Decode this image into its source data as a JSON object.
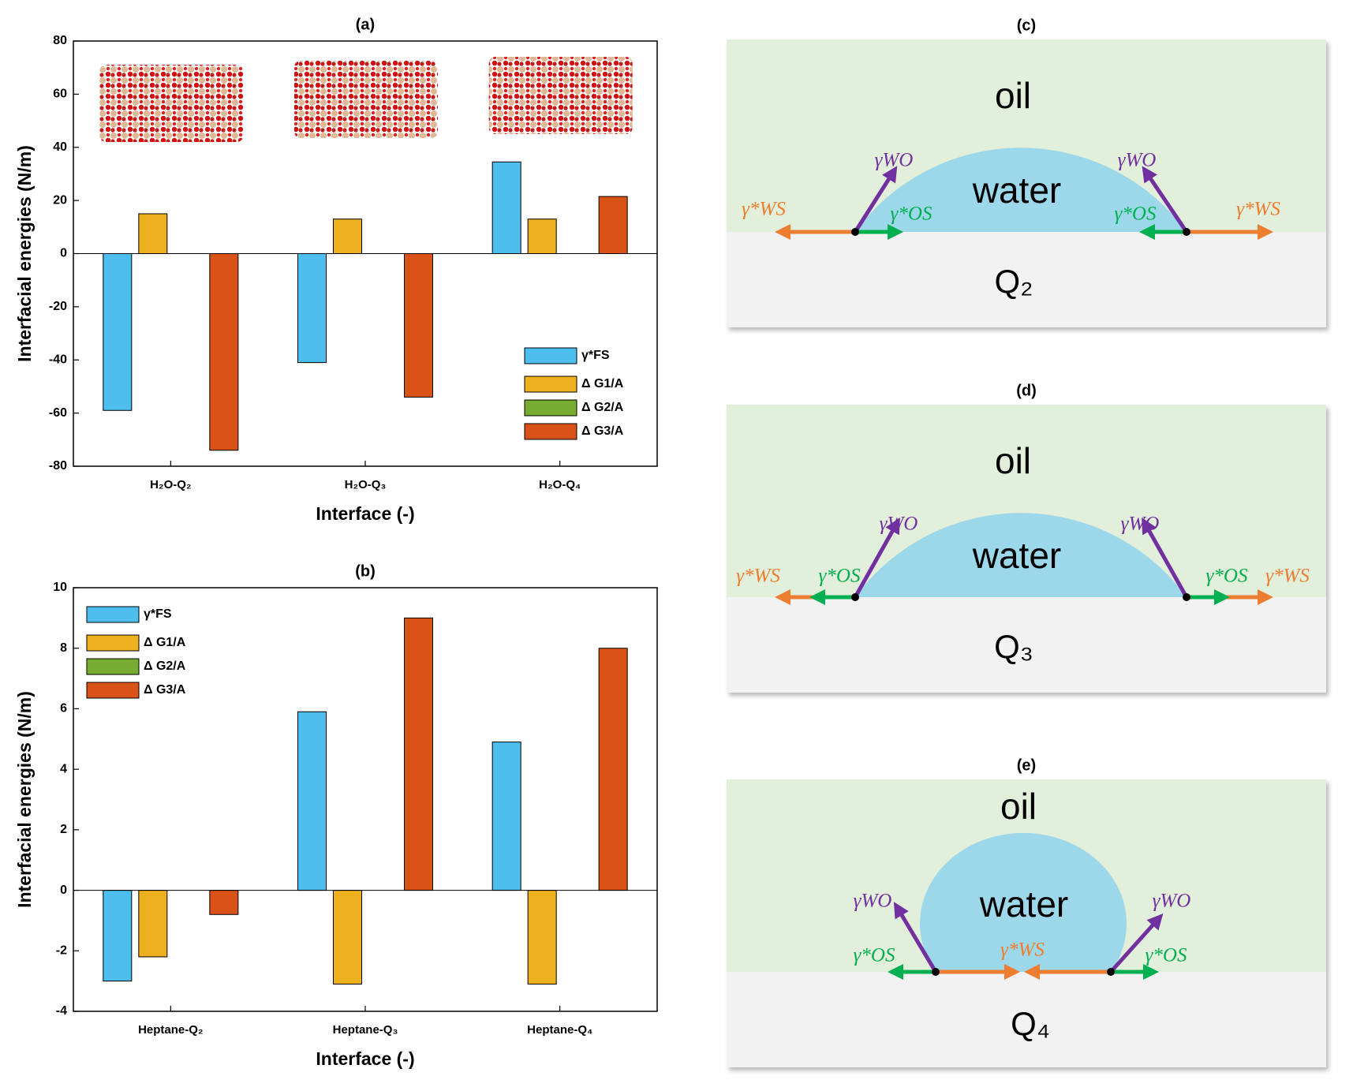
{
  "chart_data": [
    {
      "type": "bar",
      "title": "(a)",
      "ylabel": "Interfacial energies (N/m)",
      "xlabel": "Interface (-)",
      "categories": [
        "H₂O-Q₂",
        "H₂O-Q₃",
        "H₂O-Q₄"
      ],
      "series": [
        {
          "name": "γ*FS",
          "color": "#4dbeee",
          "values": [
            -59,
            -41,
            34.5
          ]
        },
        {
          "name": "Δ G1/A",
          "color": "#edb120",
          "values": [
            15,
            13,
            13
          ]
        },
        {
          "name": "Δ G2/A",
          "color": "#77ac30",
          "values": [
            0,
            0,
            0
          ]
        },
        {
          "name": "Δ G3/A",
          "color": "#d95319",
          "values": [
            -74,
            -54,
            21.5
          ]
        }
      ],
      "ylim": [
        -80,
        80
      ],
      "yticks": [
        -80,
        -60,
        -40,
        -20,
        0,
        20,
        40,
        60,
        80
      ],
      "legend": "lower right"
    },
    {
      "type": "bar",
      "title": "(b)",
      "ylabel": "Interfacial energies (N/m)",
      "xlabel": "Interface (-)",
      "categories": [
        "Heptane-Q₂",
        "Heptane-Q₃",
        "Heptane-Q₄"
      ],
      "series": [
        {
          "name": "γ*FS",
          "color": "#4dbeee",
          "values": [
            -3,
            5.9,
            4.9
          ]
        },
        {
          "name": "Δ G1/A",
          "color": "#edb120",
          "values": [
            -2.2,
            -3.1,
            -3.1
          ]
        },
        {
          "name": "Δ G2/A",
          "color": "#77ac30",
          "values": [
            0,
            0,
            0
          ]
        },
        {
          "name": "Δ G3/A",
          "color": "#d95319",
          "values": [
            -0.8,
            9,
            8
          ]
        }
      ],
      "ylim": [
        -4,
        10
      ],
      "yticks": [
        -4,
        -2,
        0,
        2,
        4,
        6,
        8,
        10
      ],
      "legend": "upper left"
    }
  ],
  "diagrams": [
    {
      "title": "(c)",
      "oil": "oil",
      "water": "water",
      "solid": "Q₂",
      "labels": [
        "γWO",
        "γ*WS",
        "γ*OS",
        "γWO",
        "γ*OS",
        "γ*WS"
      ]
    },
    {
      "title": "(d)",
      "oil": "oil",
      "water": "water",
      "solid": "Q₃",
      "labels": [
        "γWO",
        "γ*WS",
        "γ*OS",
        "γWO",
        "γ*OS",
        "γ*WS"
      ]
    },
    {
      "title": "(e)",
      "oil": "oil",
      "water": "water",
      "solid": "Q₄",
      "labels": [
        "γWO",
        "γ*OS",
        "γ*WS",
        "γWO",
        "γ*OS"
      ]
    }
  ]
}
